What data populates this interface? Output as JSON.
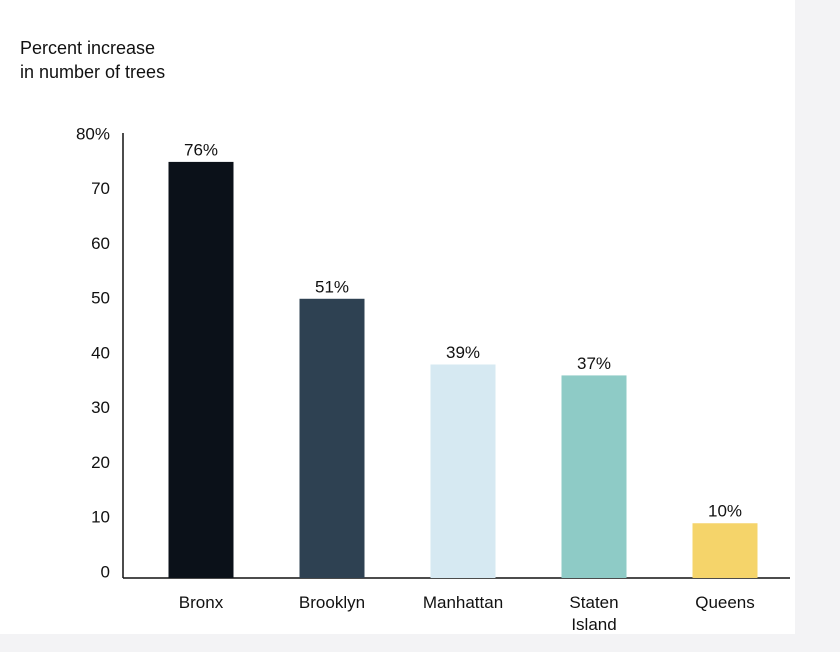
{
  "chart_data": {
    "type": "bar",
    "title": "Percent increase in number of trees",
    "categories": [
      "Bronx",
      "Brooklyn",
      "Manhattan",
      "Staten Island",
      "Queens"
    ],
    "values": [
      76,
      51,
      39,
      37,
      10
    ],
    "value_labels": [
      "76%",
      "51%",
      "39%",
      "37%",
      "10%"
    ],
    "colors": [
      "#0b1119",
      "#2e4152",
      "#d6e9f2",
      "#8ecbc6",
      "#f5d46a"
    ],
    "ylim": [
      0,
      80
    ],
    "yticks": [
      0,
      10,
      20,
      30,
      40,
      50,
      60,
      70,
      {
        "value": 80,
        "label": "80%"
      }
    ],
    "grid": false
  }
}
